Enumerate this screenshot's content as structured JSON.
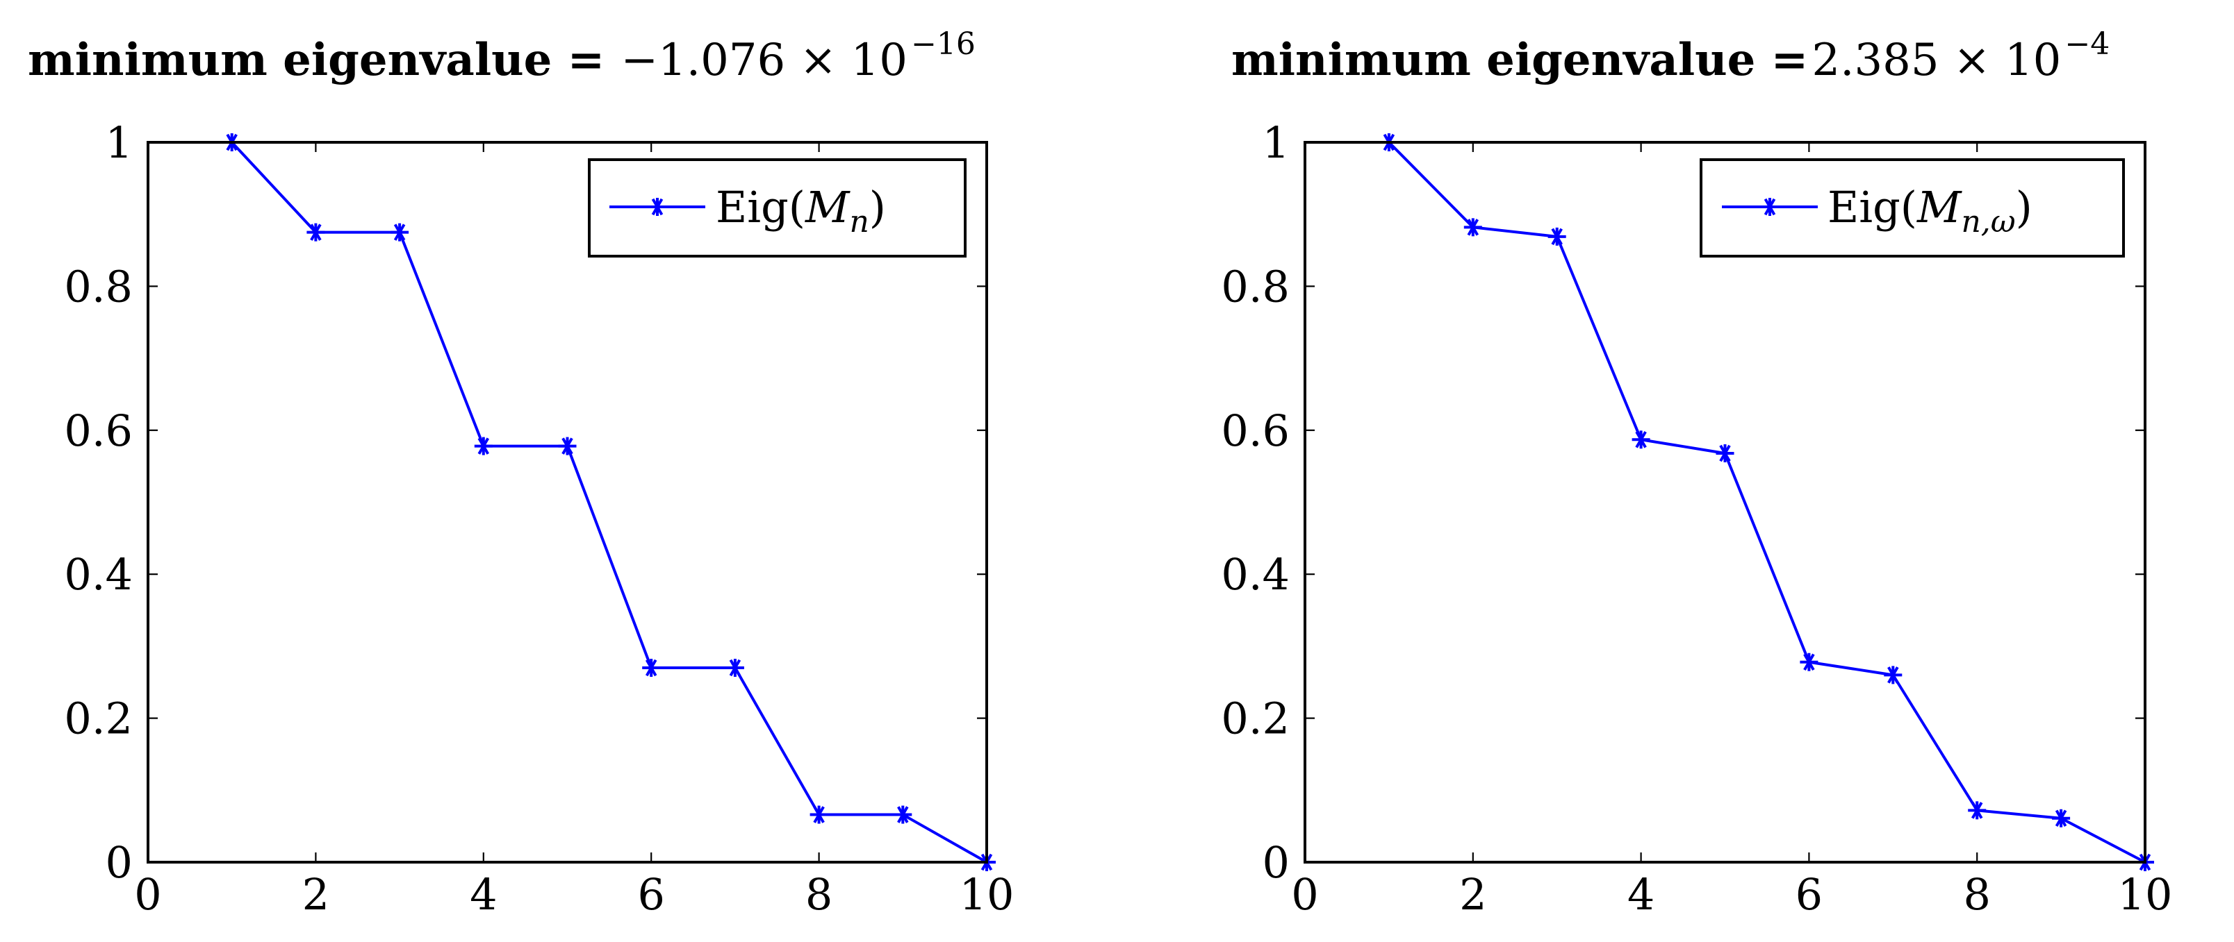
{
  "chart_data": [
    {
      "type": "line",
      "title_bold": "minimum eigenvalue =",
      "title_value": "−1.076 × 10",
      "title_exponent": "−16",
      "xlabel": "",
      "ylabel": "",
      "xlim": [
        0,
        10
      ],
      "ylim": [
        0,
        1
      ],
      "xticks": [
        0,
        2,
        4,
        6,
        8,
        10
      ],
      "yticks": [
        0,
        0.2,
        0.4,
        0.6,
        0.8,
        1
      ],
      "xtick_labels": [
        "0",
        "2",
        "4",
        "6",
        "8",
        "10"
      ],
      "ytick_labels": [
        "0",
        "0.2",
        "0.4",
        "0.6",
        "0.8",
        "1"
      ],
      "legend_position": "top-right",
      "series": [
        {
          "name": "Eig(M_n)",
          "legend_text": "Eig(",
          "legend_symbol": "M",
          "legend_subscript": "n",
          "legend_close": ")",
          "marker": "asterisk",
          "x": [
            1,
            2,
            3,
            4,
            5,
            6,
            7,
            8,
            9,
            10
          ],
          "values": [
            1.0,
            0.875,
            0.875,
            0.578,
            0.578,
            0.27,
            0.27,
            0.066,
            0.066,
            0.0
          ]
        }
      ]
    },
    {
      "type": "line",
      "title_bold": "minimum eigenvalue =",
      "title_value": "2.385 × 10",
      "title_exponent": "−4",
      "xlabel": "",
      "ylabel": "",
      "xlim": [
        0,
        10
      ],
      "ylim": [
        0,
        1
      ],
      "xticks": [
        0,
        2,
        4,
        6,
        8,
        10
      ],
      "yticks": [
        0,
        0.2,
        0.4,
        0.6,
        0.8,
        1
      ],
      "xtick_labels": [
        "0",
        "2",
        "4",
        "6",
        "8",
        "10"
      ],
      "ytick_labels": [
        "0",
        "0.2",
        "0.4",
        "0.6",
        "0.8",
        "1"
      ],
      "legend_position": "top-right",
      "series": [
        {
          "name": "Eig(M_{n,ω})",
          "legend_text": "Eig(",
          "legend_symbol": "M",
          "legend_subscript": "n,ω",
          "legend_close": ")",
          "marker": "asterisk",
          "x": [
            1,
            2,
            3,
            4,
            5,
            6,
            7,
            8,
            9,
            10
          ],
          "values": [
            1.0,
            0.882,
            0.869,
            0.587,
            0.568,
            0.278,
            0.26,
            0.072,
            0.061,
            0.0
          ]
        }
      ]
    }
  ],
  "colors": {
    "series": "#0000ff",
    "axes": "#000000",
    "background": "#ffffff"
  }
}
